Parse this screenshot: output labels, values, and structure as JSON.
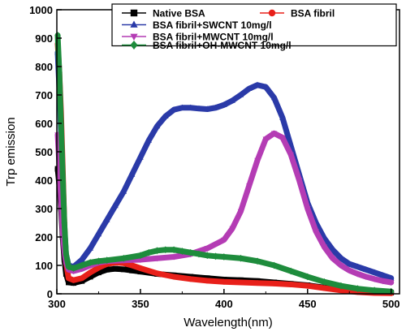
{
  "chart_data": {
    "type": "line",
    "title": "",
    "xlabel": "Wavelength(nm)",
    "ylabel": "Trp emission",
    "xlim": [
      300,
      505
    ],
    "ylim": [
      0,
      1000
    ],
    "xticks": [
      300,
      350,
      400,
      450,
      500
    ],
    "yticks": [
      0,
      100,
      200,
      300,
      400,
      500,
      600,
      700,
      800,
      900,
      1000
    ],
    "legend_position": "top-right",
    "grid": false,
    "series": [
      {
        "name": "Native BSA",
        "color": "#000000",
        "marker": "square",
        "points": [
          [
            300.5,
            440
          ],
          [
            301.5,
            380
          ],
          [
            302.5,
            300
          ],
          [
            303.5,
            200
          ],
          [
            304.5,
            120
          ],
          [
            305.5,
            70
          ],
          [
            307,
            40
          ],
          [
            310,
            38
          ],
          [
            315,
            45
          ],
          [
            320,
            60
          ],
          [
            325,
            75
          ],
          [
            330,
            85
          ],
          [
            335,
            88
          ],
          [
            340,
            86
          ],
          [
            345,
            82
          ],
          [
            350,
            78
          ],
          [
            360,
            70
          ],
          [
            370,
            65
          ],
          [
            380,
            60
          ],
          [
            390,
            55
          ],
          [
            400,
            50
          ],
          [
            410,
            48
          ],
          [
            420,
            45
          ],
          [
            430,
            40
          ],
          [
            440,
            35
          ],
          [
            450,
            30
          ],
          [
            460,
            22
          ],
          [
            470,
            15
          ],
          [
            480,
            10
          ],
          [
            490,
            6
          ],
          [
            500,
            4
          ]
        ]
      },
      {
        "name": "BSA fibril",
        "color": "#e8201a",
        "marker": "circle",
        "points": [
          [
            300.5,
            880
          ],
          [
            301.5,
            780
          ],
          [
            302.5,
            640
          ],
          [
            303.5,
            450
          ],
          [
            304.5,
            250
          ],
          [
            305.5,
            110
          ],
          [
            307,
            55
          ],
          [
            310,
            48
          ],
          [
            315,
            55
          ],
          [
            320,
            75
          ],
          [
            325,
            92
          ],
          [
            330,
            105
          ],
          [
            335,
            110
          ],
          [
            340,
            108
          ],
          [
            345,
            100
          ],
          [
            350,
            90
          ],
          [
            360,
            72
          ],
          [
            370,
            60
          ],
          [
            380,
            52
          ],
          [
            390,
            46
          ],
          [
            400,
            42
          ],
          [
            410,
            40
          ],
          [
            420,
            38
          ],
          [
            430,
            36
          ],
          [
            440,
            33
          ],
          [
            450,
            28
          ],
          [
            460,
            20
          ],
          [
            470,
            12
          ],
          [
            480,
            6
          ],
          [
            490,
            3
          ],
          [
            500,
            2
          ]
        ]
      },
      {
        "name": "BSA fibril+SWCNT 10mg/l",
        "color": "#2a3aa8",
        "marker": "triangle-up",
        "points": [
          [
            300.5,
            850
          ],
          [
            301.5,
            720
          ],
          [
            302.5,
            560
          ],
          [
            303.5,
            380
          ],
          [
            304.5,
            230
          ],
          [
            305.5,
            140
          ],
          [
            307,
            100
          ],
          [
            310,
            95
          ],
          [
            315,
            120
          ],
          [
            320,
            160
          ],
          [
            325,
            210
          ],
          [
            330,
            260
          ],
          [
            335,
            310
          ],
          [
            340,
            360
          ],
          [
            345,
            420
          ],
          [
            350,
            480
          ],
          [
            355,
            540
          ],
          [
            360,
            590
          ],
          [
            365,
            625
          ],
          [
            370,
            648
          ],
          [
            375,
            655
          ],
          [
            380,
            655
          ],
          [
            385,
            652
          ],
          [
            390,
            650
          ],
          [
            395,
            655
          ],
          [
            400,
            665
          ],
          [
            405,
            680
          ],
          [
            410,
            700
          ],
          [
            415,
            722
          ],
          [
            420,
            735
          ],
          [
            425,
            728
          ],
          [
            430,
            690
          ],
          [
            435,
            620
          ],
          [
            440,
            520
          ],
          [
            445,
            420
          ],
          [
            450,
            320
          ],
          [
            455,
            250
          ],
          [
            460,
            195
          ],
          [
            465,
            155
          ],
          [
            470,
            125
          ],
          [
            475,
            105
          ],
          [
            480,
            95
          ],
          [
            485,
            85
          ],
          [
            490,
            75
          ],
          [
            495,
            65
          ],
          [
            500,
            55
          ]
        ]
      },
      {
        "name": "BSA fibril+MWCNT 10mg/l",
        "color": "#b43cb4",
        "marker": "triangle-down",
        "points": [
          [
            300.5,
            560
          ],
          [
            301.5,
            450
          ],
          [
            302.5,
            330
          ],
          [
            303.5,
            220
          ],
          [
            304.5,
            150
          ],
          [
            305.5,
            110
          ],
          [
            307,
            85
          ],
          [
            310,
            80
          ],
          [
            315,
            88
          ],
          [
            320,
            100
          ],
          [
            325,
            110
          ],
          [
            330,
            115
          ],
          [
            340,
            118
          ],
          [
            350,
            120
          ],
          [
            360,
            125
          ],
          [
            370,
            130
          ],
          [
            380,
            140
          ],
          [
            390,
            160
          ],
          [
            400,
            190
          ],
          [
            405,
            230
          ],
          [
            410,
            290
          ],
          [
            415,
            380
          ],
          [
            420,
            470
          ],
          [
            425,
            545
          ],
          [
            430,
            565
          ],
          [
            435,
            550
          ],
          [
            440,
            490
          ],
          [
            445,
            400
          ],
          [
            450,
            300
          ],
          [
            455,
            220
          ],
          [
            460,
            165
          ],
          [
            465,
            125
          ],
          [
            470,
            100
          ],
          [
            475,
            82
          ],
          [
            480,
            70
          ],
          [
            485,
            60
          ],
          [
            490,
            52
          ],
          [
            495,
            45
          ],
          [
            500,
            40
          ]
        ]
      },
      {
        "name": "BSA fibril+OH-MWCNT 10mg/l",
        "color": "#1e8c3c",
        "marker": "diamond",
        "points": [
          [
            300.5,
            910
          ],
          [
            301.5,
            780
          ],
          [
            302.5,
            600
          ],
          [
            303.5,
            420
          ],
          [
            304.5,
            250
          ],
          [
            305.5,
            140
          ],
          [
            307,
            95
          ],
          [
            310,
            90
          ],
          [
            315,
            100
          ],
          [
            320,
            110
          ],
          [
            325,
            115
          ],
          [
            330,
            118
          ],
          [
            340,
            125
          ],
          [
            350,
            135
          ],
          [
            355,
            145
          ],
          [
            360,
            152
          ],
          [
            365,
            155
          ],
          [
            370,
            155
          ],
          [
            375,
            150
          ],
          [
            380,
            145
          ],
          [
            385,
            140
          ],
          [
            390,
            135
          ],
          [
            395,
            132
          ],
          [
            400,
            130
          ],
          [
            410,
            125
          ],
          [
            420,
            115
          ],
          [
            430,
            100
          ],
          [
            440,
            80
          ],
          [
            450,
            60
          ],
          [
            460,
            42
          ],
          [
            470,
            28
          ],
          [
            480,
            18
          ],
          [
            490,
            12
          ],
          [
            500,
            8
          ]
        ]
      }
    ]
  }
}
